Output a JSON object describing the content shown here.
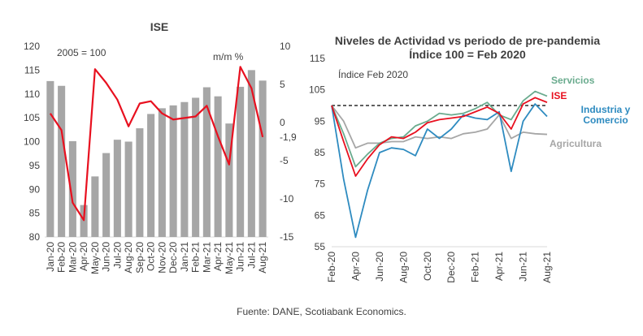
{
  "chart_data": [
    {
      "type": "bar",
      "title": "ISE",
      "annotation": "2005 = 100",
      "right_axis_label": "m/m %",
      "categories": [
        "Jan-20",
        "Feb-20",
        "Mar-20",
        "Apr-20",
        "May-20",
        "Jun-20",
        "Jul-20",
        "Aug-20",
        "Sep-20",
        "Oct-20",
        "Nov-20",
        "Dec-20",
        "Jan-21",
        "Feb-21",
        "Mar-21",
        "Apr-21",
        "May-21",
        "Jun-21",
        "Jul-21",
        "Aug-21"
      ],
      "x_ticks": [
        "Jan-20",
        "Feb-20",
        "Mar-20",
        "Apr-20",
        "May-20",
        "Jun-20",
        "Jul-20",
        "Aug-20",
        "Sep-20",
        "Oct-20",
        "Nov-20",
        "Dec-20",
        "Jan-21",
        "Feb-21",
        "Mar-21",
        "Apr-21",
        "May-21",
        "Jun-21",
        "Jul-21",
        "Aug-21"
      ],
      "left_ylim": [
        80,
        120
      ],
      "left_ticks": [
        "80",
        "85",
        "90",
        "95",
        "100",
        "105",
        "110",
        "115",
        "120"
      ],
      "right_ylim": [
        -15,
        10
      ],
      "right_ticks": [
        "-15",
        "-10",
        "-5",
        "0",
        "5",
        "10"
      ],
      "right_ticks_labels": [
        "-15",
        "-10",
        "-5",
        "-1,9",
        "0",
        "5",
        "10"
      ],
      "series": [
        {
          "kind": "bar",
          "axis": "left",
          "color": "#a6a6a6",
          "values": [
            112.7,
            111.7,
            100.1,
            86.7,
            92.7,
            97.6,
            100.4,
            100.0,
            102.8,
            105.8,
            107.0,
            107.6,
            108.3,
            109.2,
            111.4,
            109.5,
            103.8,
            111.5,
            115.0,
            112.8
          ]
        },
        {
          "kind": "line",
          "axis": "right",
          "color": "#e8101f",
          "values": [
            1.2,
            -1.0,
            -10.5,
            -12.8,
            7.0,
            5.2,
            3.0,
            -0.5,
            2.5,
            2.8,
            1.2,
            0.4,
            0.6,
            0.8,
            2.2,
            -1.8,
            -5.5,
            7.3,
            4.5,
            -1.9
          ]
        }
      ]
    },
    {
      "type": "line",
      "title": "Niveles de Actividad vs periodo de pre-pandemia",
      "subtitle": "Índice 100 = Feb 2020",
      "annotation": "Índice Feb 2020",
      "ylim": [
        55,
        115
      ],
      "y_ticks": [
        "55",
        "65",
        "75",
        "85",
        "95",
        "105",
        "115"
      ],
      "x_ticks": [
        "Feb-20",
        "Apr-20",
        "Jun-20",
        "Aug-20",
        "Oct-20",
        "Dec-20",
        "Feb-21",
        "Apr-21",
        "Jun-21",
        "Aug-21"
      ],
      "x": [
        "Feb-20",
        "Mar-20",
        "Apr-20",
        "May-20",
        "Jun-20",
        "Jul-20",
        "Aug-20",
        "Sep-20",
        "Oct-20",
        "Nov-20",
        "Dec-20",
        "Jan-21",
        "Feb-21",
        "Mar-21",
        "Apr-21",
        "May-21",
        "Jun-21",
        "Jul-21",
        "Aug-21"
      ],
      "reference_line": 100,
      "series": [
        {
          "name": "Servicios",
          "color": "#6aab8e",
          "values": [
            100,
            91,
            80.5,
            84.5,
            88,
            89.5,
            90,
            93.5,
            95,
            97.5,
            97,
            97.5,
            99,
            101,
            97,
            95.5,
            101.5,
            104.5,
            103
          ]
        },
        {
          "name": "ISE",
          "color": "#e8101f",
          "values": [
            100,
            88.5,
            77.5,
            83,
            87.5,
            90,
            89.5,
            91.5,
            94.5,
            95.5,
            96,
            96.5,
            98,
            99.5,
            97.5,
            92.5,
            100.5,
            102.5,
            101
          ]
        },
        {
          "name": "Industria y Comercio",
          "color": "#2e8bc0",
          "values": [
            100,
            76.5,
            58,
            73,
            85,
            86.5,
            86,
            84,
            92.5,
            89.5,
            92.5,
            97,
            96,
            95.5,
            98,
            79,
            95,
            100.5,
            96.5
          ]
        },
        {
          "name": "Agricultura",
          "color": "#a6a6a6",
          "values": [
            100,
            95,
            86.5,
            88,
            88,
            88.5,
            88.5,
            90,
            89.5,
            90,
            89.5,
            91,
            91.5,
            92.5,
            97,
            89.5,
            91.5,
            91,
            90.8
          ]
        }
      ]
    }
  ],
  "footer": {
    "source": "Fuente: DANE, Scotiabank Economics."
  }
}
